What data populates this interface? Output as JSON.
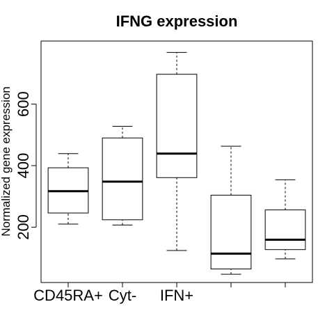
{
  "chart_data": {
    "type": "box",
    "title": "IFNG expression",
    "xlabel": "",
    "ylabel": "Normalized gene expression",
    "ylim": [
      20,
      805
    ],
    "y_ticks": [
      200,
      400,
      600
    ],
    "x_tick_labels": [
      "CD45RA+",
      "Cyt-",
      "IFN+",
      "",
      ""
    ],
    "series": [
      {
        "whisker_low": 210,
        "q1": 246,
        "median": 317,
        "q3": 393,
        "whisker_high": 439
      },
      {
        "whisker_low": 207,
        "q1": 224,
        "median": 348,
        "q3": 490,
        "whisker_high": 528
      },
      {
        "whisker_low": 124,
        "q1": 361,
        "median": 439,
        "q3": 697,
        "whisker_high": 768
      },
      {
        "whisker_low": 47,
        "q1": 64,
        "median": 114,
        "q3": 304,
        "whisker_high": 463
      },
      {
        "whisker_low": 97,
        "q1": 127,
        "median": 159,
        "q3": 256,
        "whisker_high": 354
      }
    ]
  }
}
